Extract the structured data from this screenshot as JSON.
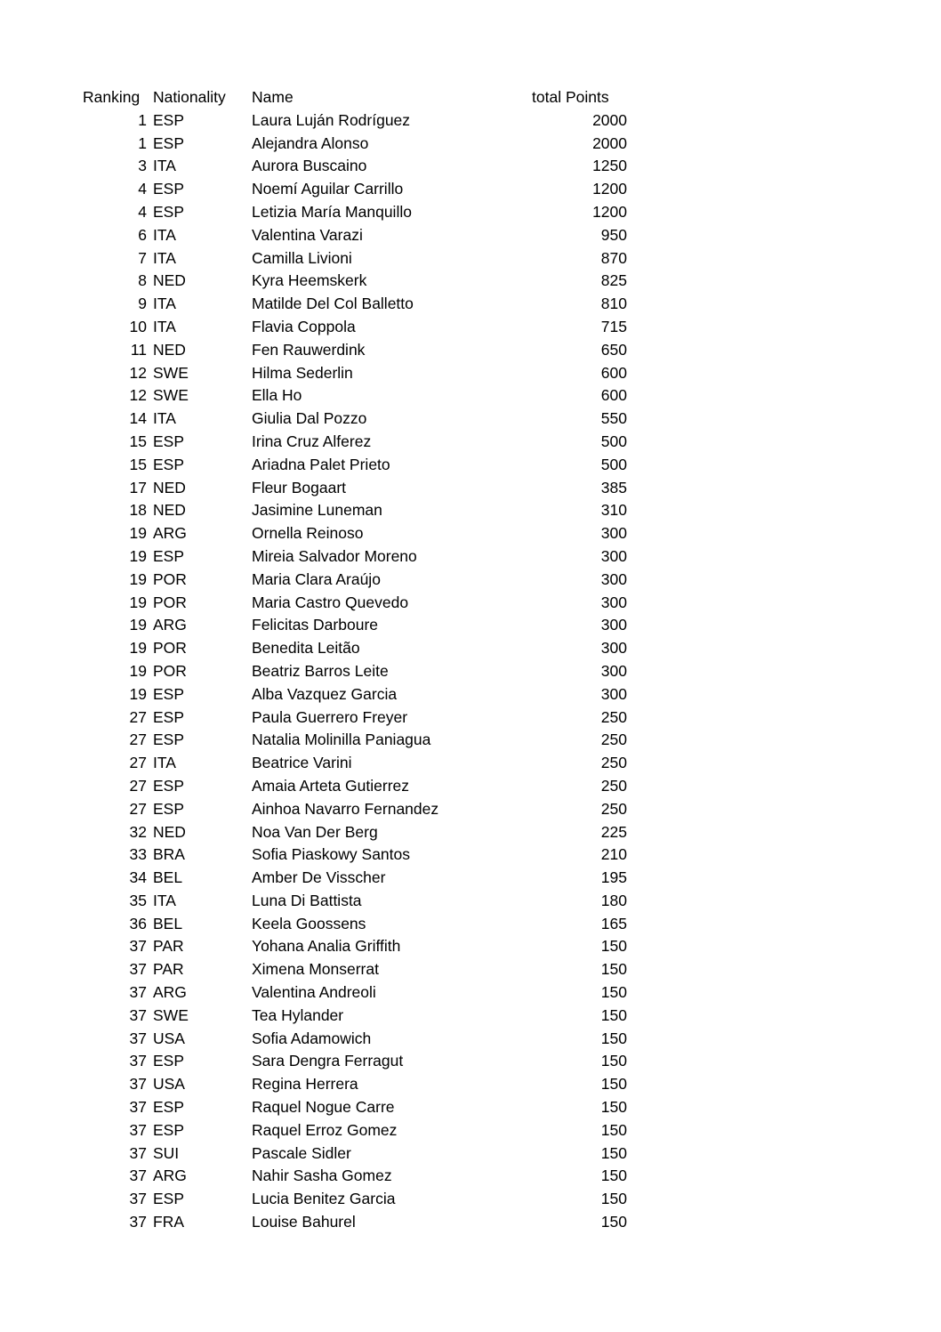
{
  "table": {
    "headers": [
      "Ranking",
      "Nationality",
      "Name",
      "total Points"
    ],
    "rows": [
      [
        "1",
        "ESP",
        "Laura Luján Rodríguez",
        "2000"
      ],
      [
        "1",
        "ESP",
        "Alejandra Alonso",
        "2000"
      ],
      [
        "3",
        "ITA",
        "Aurora Buscaino",
        "1250"
      ],
      [
        "4",
        "ESP",
        "Noemí Aguilar Carrillo",
        "1200"
      ],
      [
        "4",
        "ESP",
        "Letizia María Manquillo",
        "1200"
      ],
      [
        "6",
        "ITA",
        "Valentina Varazi",
        "950"
      ],
      [
        "7",
        "ITA",
        "Camilla Livioni",
        "870"
      ],
      [
        "8",
        "NED",
        "Kyra Heemskerk",
        "825"
      ],
      [
        "9",
        "ITA",
        "Matilde Del Col Balletto",
        "810"
      ],
      [
        "10",
        "ITA",
        "Flavia Coppola",
        "715"
      ],
      [
        "11",
        "NED",
        "Fen Rauwerdink",
        "650"
      ],
      [
        "12",
        "SWE",
        "Hilma Sederlin",
        "600"
      ],
      [
        "12",
        "SWE",
        "Ella Ho",
        "600"
      ],
      [
        "14",
        "ITA",
        "Giulia Dal Pozzo",
        "550"
      ],
      [
        "15",
        "ESP",
        "Irina Cruz Alferez",
        "500"
      ],
      [
        "15",
        "ESP",
        "Ariadna Palet Prieto",
        "500"
      ],
      [
        "17",
        "NED",
        "Fleur Bogaart",
        "385"
      ],
      [
        "18",
        "NED",
        "Jasimine Luneman",
        "310"
      ],
      [
        "19",
        "ARG",
        "Ornella Reinoso",
        "300"
      ],
      [
        "19",
        "ESP",
        "Mireia Salvador Moreno",
        "300"
      ],
      [
        "19",
        "POR",
        "Maria Clara Araújo",
        "300"
      ],
      [
        "19",
        "POR",
        "Maria Castro Quevedo",
        "300"
      ],
      [
        "19",
        "ARG",
        "Felicitas Darboure",
        "300"
      ],
      [
        "19",
        "POR",
        "Benedita Leitão",
        "300"
      ],
      [
        "19",
        "POR",
        "Beatriz Barros Leite",
        "300"
      ],
      [
        "19",
        "ESP",
        "Alba Vazquez Garcia",
        "300"
      ],
      [
        "27",
        "ESP",
        "Paula Guerrero Freyer",
        "250"
      ],
      [
        "27",
        "ESP",
        "Natalia Molinilla Paniagua",
        "250"
      ],
      [
        "27",
        "ITA",
        "Beatrice Varini",
        "250"
      ],
      [
        "27",
        "ESP",
        "Amaia Arteta Gutierrez",
        "250"
      ],
      [
        "27",
        "ESP",
        "Ainhoa Navarro Fernandez",
        "250"
      ],
      [
        "32",
        "NED",
        "Noa Van Der Berg",
        "225"
      ],
      [
        "33",
        "BRA",
        "Sofia Piaskowy Santos",
        "210"
      ],
      [
        "34",
        "BEL",
        "Amber De Visscher",
        "195"
      ],
      [
        "35",
        "ITA",
        "Luna Di Battista",
        "180"
      ],
      [
        "36",
        "BEL",
        "Keela Goossens",
        "165"
      ],
      [
        "37",
        "PAR",
        "Yohana Analia Griffith",
        "150"
      ],
      [
        "37",
        "PAR",
        "Ximena Monserrat",
        "150"
      ],
      [
        "37",
        "ARG",
        "Valentina Andreoli",
        "150"
      ],
      [
        "37",
        "SWE",
        "Tea Hylander",
        "150"
      ],
      [
        "37",
        "USA",
        "Sofia Adamowich",
        "150"
      ],
      [
        "37",
        "ESP",
        "Sara Dengra Ferragut",
        "150"
      ],
      [
        "37",
        "USA",
        "Regina Herrera",
        "150"
      ],
      [
        "37",
        "ESP",
        "Raquel Nogue Carre",
        "150"
      ],
      [
        "37",
        "ESP",
        "Raquel Erroz Gomez",
        "150"
      ],
      [
        "37",
        "SUI",
        "Pascale Sidler",
        "150"
      ],
      [
        "37",
        "ARG",
        "Nahir Sasha Gomez",
        "150"
      ],
      [
        "37",
        "ESP",
        "Lucia Benitez Garcia",
        "150"
      ],
      [
        "37",
        "FRA",
        "Louise Bahurel",
        "150"
      ]
    ]
  },
  "colors": {
    "text": "#000000",
    "background": "#ffffff"
  }
}
